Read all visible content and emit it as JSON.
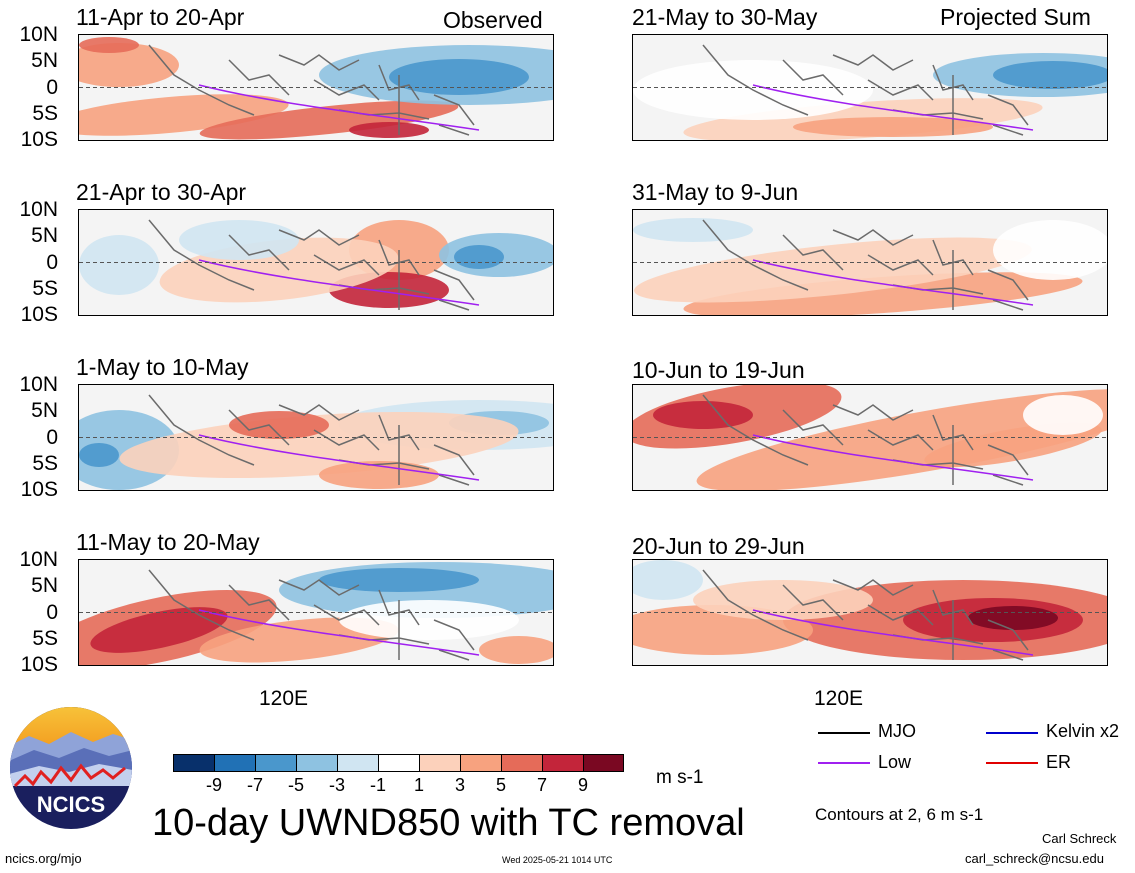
{
  "figure": {
    "title": "10-day UWND850 with TC removal",
    "left_tag": "Observed",
    "right_tag": "Projected Sum",
    "lat_labels": [
      "10N",
      "5N",
      "0",
      "5S",
      "10S"
    ],
    "lon_label": "120E"
  },
  "panels": {
    "obs": [
      "11-Apr to 20-Apr",
      "21-Apr to 30-Apr",
      "1-May to 10-May",
      "11-May to 20-May"
    ],
    "proj": [
      "21-May to 30-May",
      "31-May to 9-Jun",
      "10-Jun to 19-Jun",
      "20-Jun to 29-Jun"
    ]
  },
  "colorbar": {
    "labels": [
      "-9",
      "-7",
      "-5",
      "-3",
      "-1",
      "1",
      "3",
      "5",
      "7",
      "9"
    ],
    "colors": [
      "#08306b",
      "#2171b5",
      "#4a97cc",
      "#8ec2e1",
      "#d0e5f2",
      "#ffffff",
      "#fcd1bb",
      "#f7a27f",
      "#e56b59",
      "#c3253a",
      "#7a0822"
    ],
    "units": "m s-1"
  },
  "legend": {
    "items": [
      {
        "label": "MJO",
        "color": "#000000"
      },
      {
        "label": "Kelvin x2",
        "color": "#0000cc"
      },
      {
        "label": "Low",
        "color": "#a020f0"
      },
      {
        "label": "ER",
        "color": "#e00000"
      }
    ],
    "note": "Contours at 2, 6 m s-1"
  },
  "logo": {
    "text": "NCICS"
  },
  "footer": {
    "url": "ncics.org/mjo",
    "timestamp": "Wed 2025-05-21 1014 UTC",
    "author": "Carl Schreck",
    "email": "carl_schreck@ncsu.edu"
  }
}
